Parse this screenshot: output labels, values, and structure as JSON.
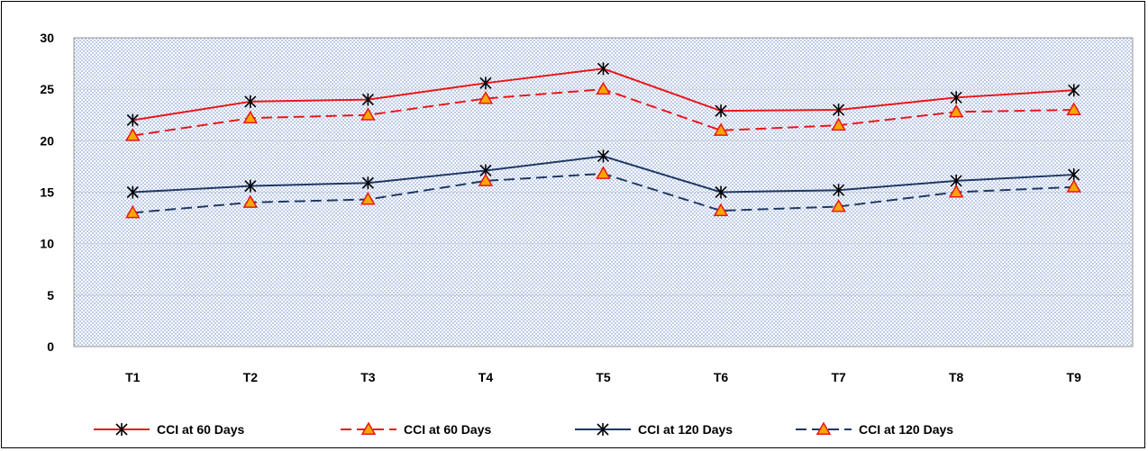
{
  "chart_data": {
    "type": "line",
    "title": "",
    "xlabel": "",
    "ylabel": "",
    "categories": [
      "T1",
      "T2",
      "T3",
      "T4",
      "T5",
      "T6",
      "T7",
      "T8",
      "T9"
    ],
    "ylim": [
      0,
      30
    ],
    "yticks": [
      0,
      5,
      10,
      15,
      20,
      25,
      30
    ],
    "grid": true,
    "legend_position": "bottom",
    "series": [
      {
        "name": "CCI at 60 Days",
        "color": "#e8161b",
        "dash": "solid",
        "marker": "asterisk",
        "values": [
          22.0,
          23.8,
          24.0,
          25.6,
          27.0,
          22.9,
          23.0,
          24.2,
          24.9
        ]
      },
      {
        "name": "CCI at 60 Days",
        "color": "#e8161b",
        "dash": "dashed",
        "marker": "triangle",
        "values": [
          20.5,
          22.2,
          22.5,
          24.1,
          25.0,
          21.0,
          21.5,
          22.8,
          23.0
        ]
      },
      {
        "name": "CCI at 120 Days",
        "color": "#1f3864",
        "dash": "solid",
        "marker": "asterisk",
        "values": [
          15.0,
          15.6,
          15.9,
          17.1,
          18.5,
          15.0,
          15.2,
          16.1,
          16.7
        ]
      },
      {
        "name": "CCI at 120 Days",
        "color": "#1f3864",
        "dash": "dashed",
        "marker": "triangle",
        "values": [
          13.0,
          14.0,
          14.3,
          16.1,
          16.8,
          13.2,
          13.6,
          15.0,
          15.5
        ]
      }
    ]
  }
}
